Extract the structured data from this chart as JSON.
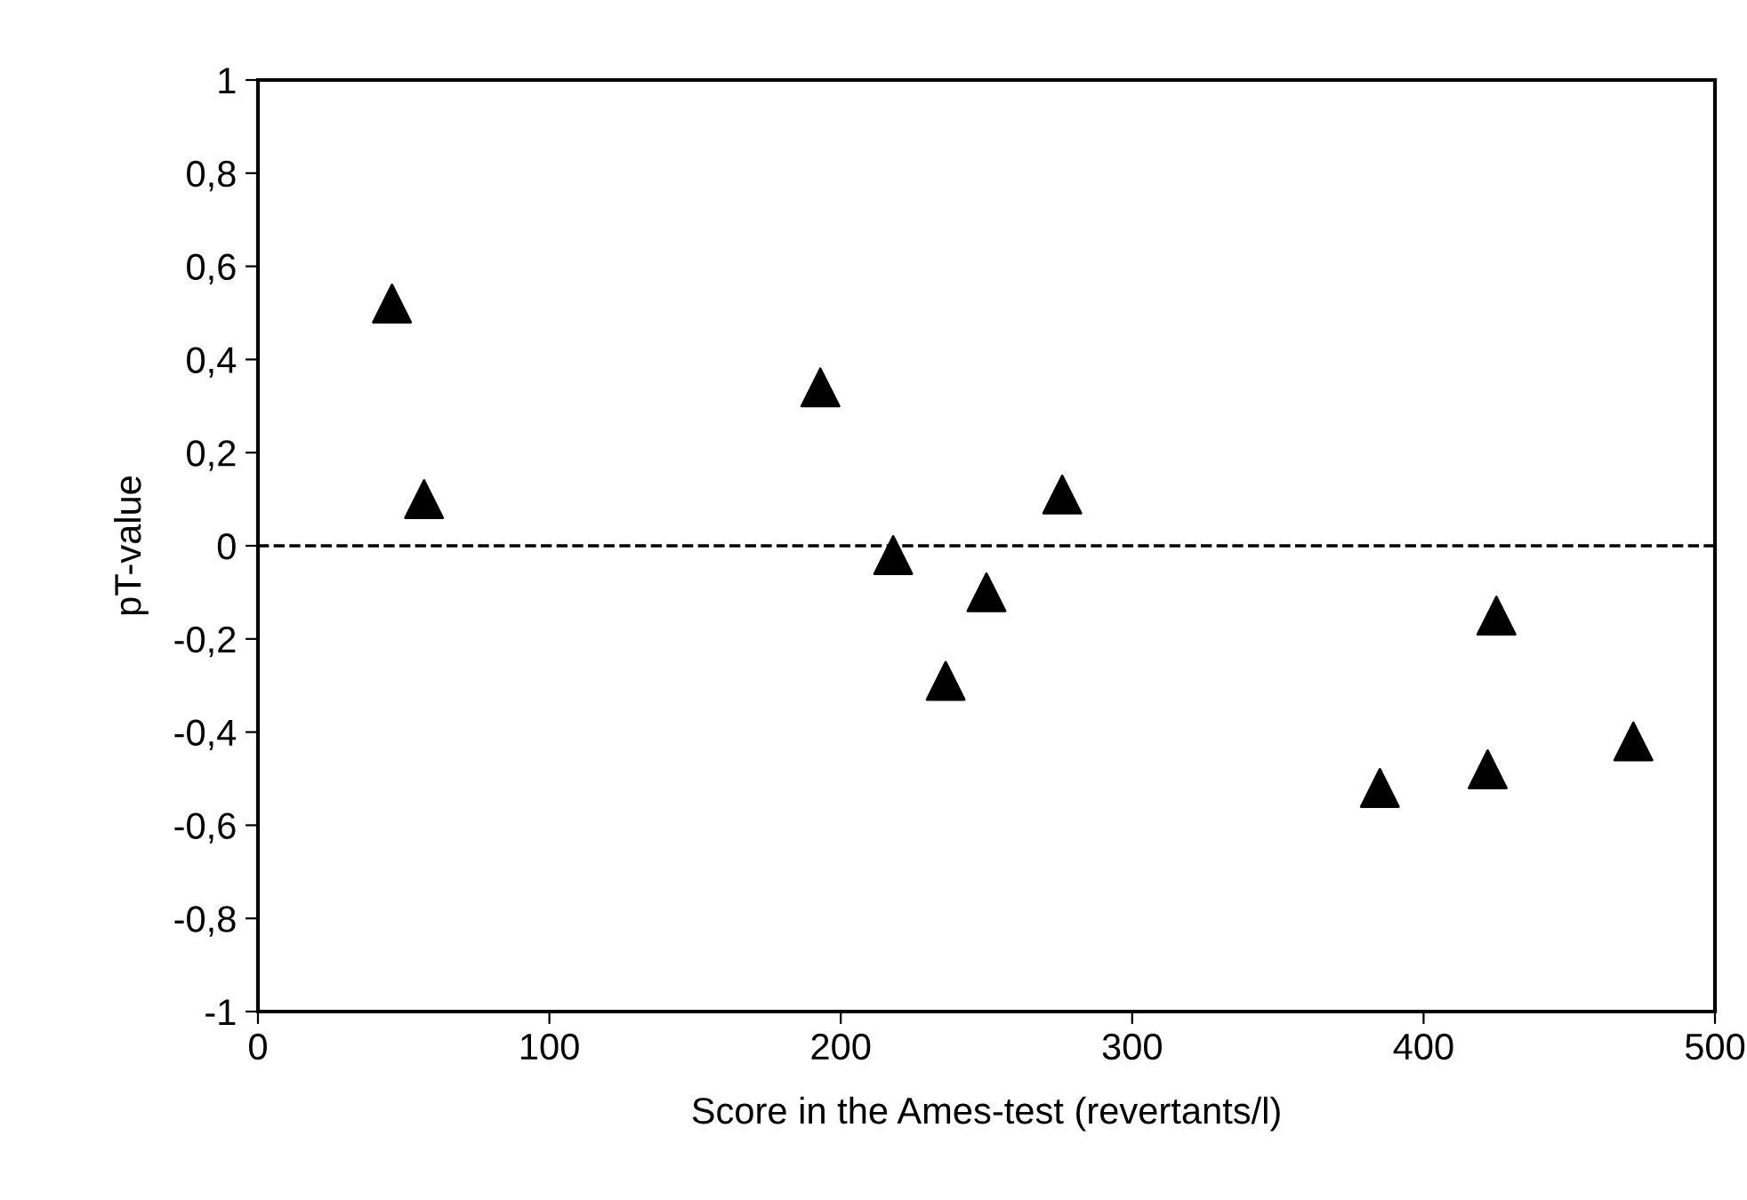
{
  "chart_data": {
    "type": "scatter",
    "xlabel": "Score in the Ames-test (revertants/l)",
    "ylabel": "pT-value",
    "x": [
      46,
      57,
      193,
      218,
      236,
      250,
      276,
      385,
      422,
      425,
      472
    ],
    "values": [
      0.52,
      0.1,
      0.34,
      -0.02,
      -0.29,
      -0.1,
      0.11,
      -0.52,
      -0.48,
      -0.15,
      -0.42
    ],
    "color": "#000000",
    "marker": "triangle",
    "xlim": [
      0,
      500
    ],
    "xticks": [
      0,
      100,
      200,
      300,
      400,
      500
    ],
    "ylim": [
      -1,
      1
    ],
    "yticks": [
      {
        "value": -1,
        "label": "-1"
      },
      {
        "value": -0.8,
        "label": "-0,8"
      },
      {
        "value": -0.6,
        "label": "-0,6"
      },
      {
        "value": -0.4,
        "label": "-0,4"
      },
      {
        "value": -0.2,
        "label": "-0,2"
      },
      {
        "value": 0,
        "label": "0"
      },
      {
        "value": 0.2,
        "label": "0,2"
      },
      {
        "value": 0.4,
        "label": "0,4"
      },
      {
        "value": 0.6,
        "label": "0,6"
      },
      {
        "value": 0.8,
        "label": "0,8"
      },
      {
        "value": 1,
        "label": "1"
      }
    ],
    "ref_lines": [
      {
        "axis": "y",
        "value": 0,
        "color": "#000000",
        "line_style": "dashed"
      }
    ],
    "grid": false
  }
}
